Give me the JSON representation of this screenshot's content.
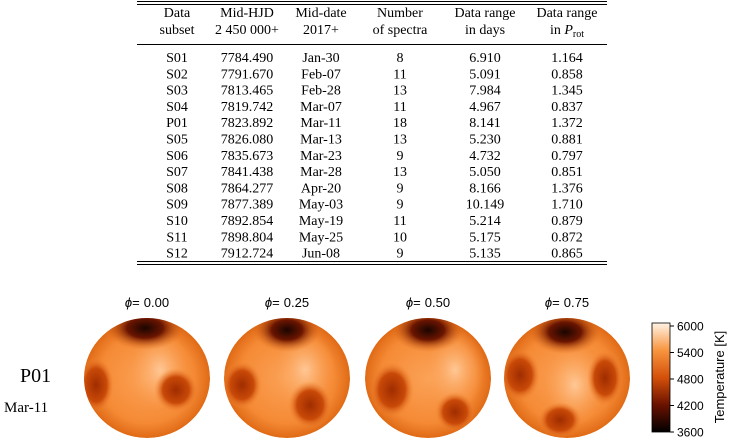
{
  "table": {
    "header": [
      [
        "Data",
        "subset"
      ],
      [
        "Mid-HJD",
        "2 450 000+"
      ],
      [
        "Mid-date",
        "2017+"
      ],
      [
        "Number",
        "of spectra"
      ],
      [
        "Data range",
        "in days"
      ],
      [
        "Data range",
        [
          "in ",
          "P",
          "rot"
        ]
      ]
    ],
    "rows": [
      [
        "S01",
        "7784.490",
        "Jan-30",
        "8",
        "6.910",
        "1.164"
      ],
      [
        "S02",
        "7791.670",
        "Feb-07",
        "11",
        "5.091",
        "0.858"
      ],
      [
        "S03",
        "7813.465",
        "Feb-28",
        "13",
        "7.984",
        "1.345"
      ],
      [
        "S04",
        "7819.742",
        "Mar-07",
        "11",
        "4.967",
        "0.837"
      ],
      [
        "P01",
        "7823.892",
        "Mar-11",
        "18",
        "8.141",
        "1.372"
      ],
      [
        "S05",
        "7826.080",
        "Mar-13",
        "13",
        "5.230",
        "0.881"
      ],
      [
        "S06",
        "7835.673",
        "Mar-23",
        "9",
        "4.732",
        "0.797"
      ],
      [
        "S07",
        "7841.438",
        "Mar-28",
        "13",
        "5.050",
        "0.851"
      ],
      [
        "S08",
        "7864.277",
        "Apr-20",
        "9",
        "8.166",
        "1.376"
      ],
      [
        "S09",
        "7877.389",
        "May-03",
        "9",
        "10.149",
        "1.710"
      ],
      [
        "S10",
        "7892.854",
        "May-19",
        "11",
        "5.214",
        "0.879"
      ],
      [
        "S11",
        "7898.804",
        "May-25",
        "10",
        "5.175",
        "0.872"
      ],
      [
        "S12",
        "7912.724",
        "Jun-08",
        "9",
        "5.135",
        "0.865"
      ]
    ]
  },
  "figure": {
    "phase_symbol": "ϕ",
    "phase_sign": "=",
    "phases": [
      "0.00",
      "0.25",
      "0.50",
      "0.75"
    ],
    "row_label": "P01",
    "row_date": "Mar-11",
    "colorbar": {
      "label": "Temperature [K]",
      "lim": [
        3600,
        6000
      ],
      "ticks": [
        3600,
        4200,
        4800,
        5400,
        6000
      ]
    }
  }
}
